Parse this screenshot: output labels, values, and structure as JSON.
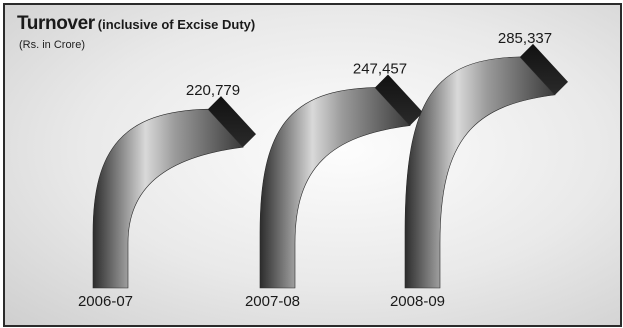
{
  "chart_data": {
    "type": "bar",
    "title": "Turnover",
    "subtitle": "(inclusive of Excise Duty)",
    "units": "(Rs. in Crore)",
    "categories": [
      "2006-07",
      "2007-08",
      "2008-09"
    ],
    "values": [
      220779,
      247457,
      285337
    ],
    "value_labels": [
      "220,779",
      "247,457",
      "285,337"
    ],
    "grid": false,
    "legend": "none"
  }
}
